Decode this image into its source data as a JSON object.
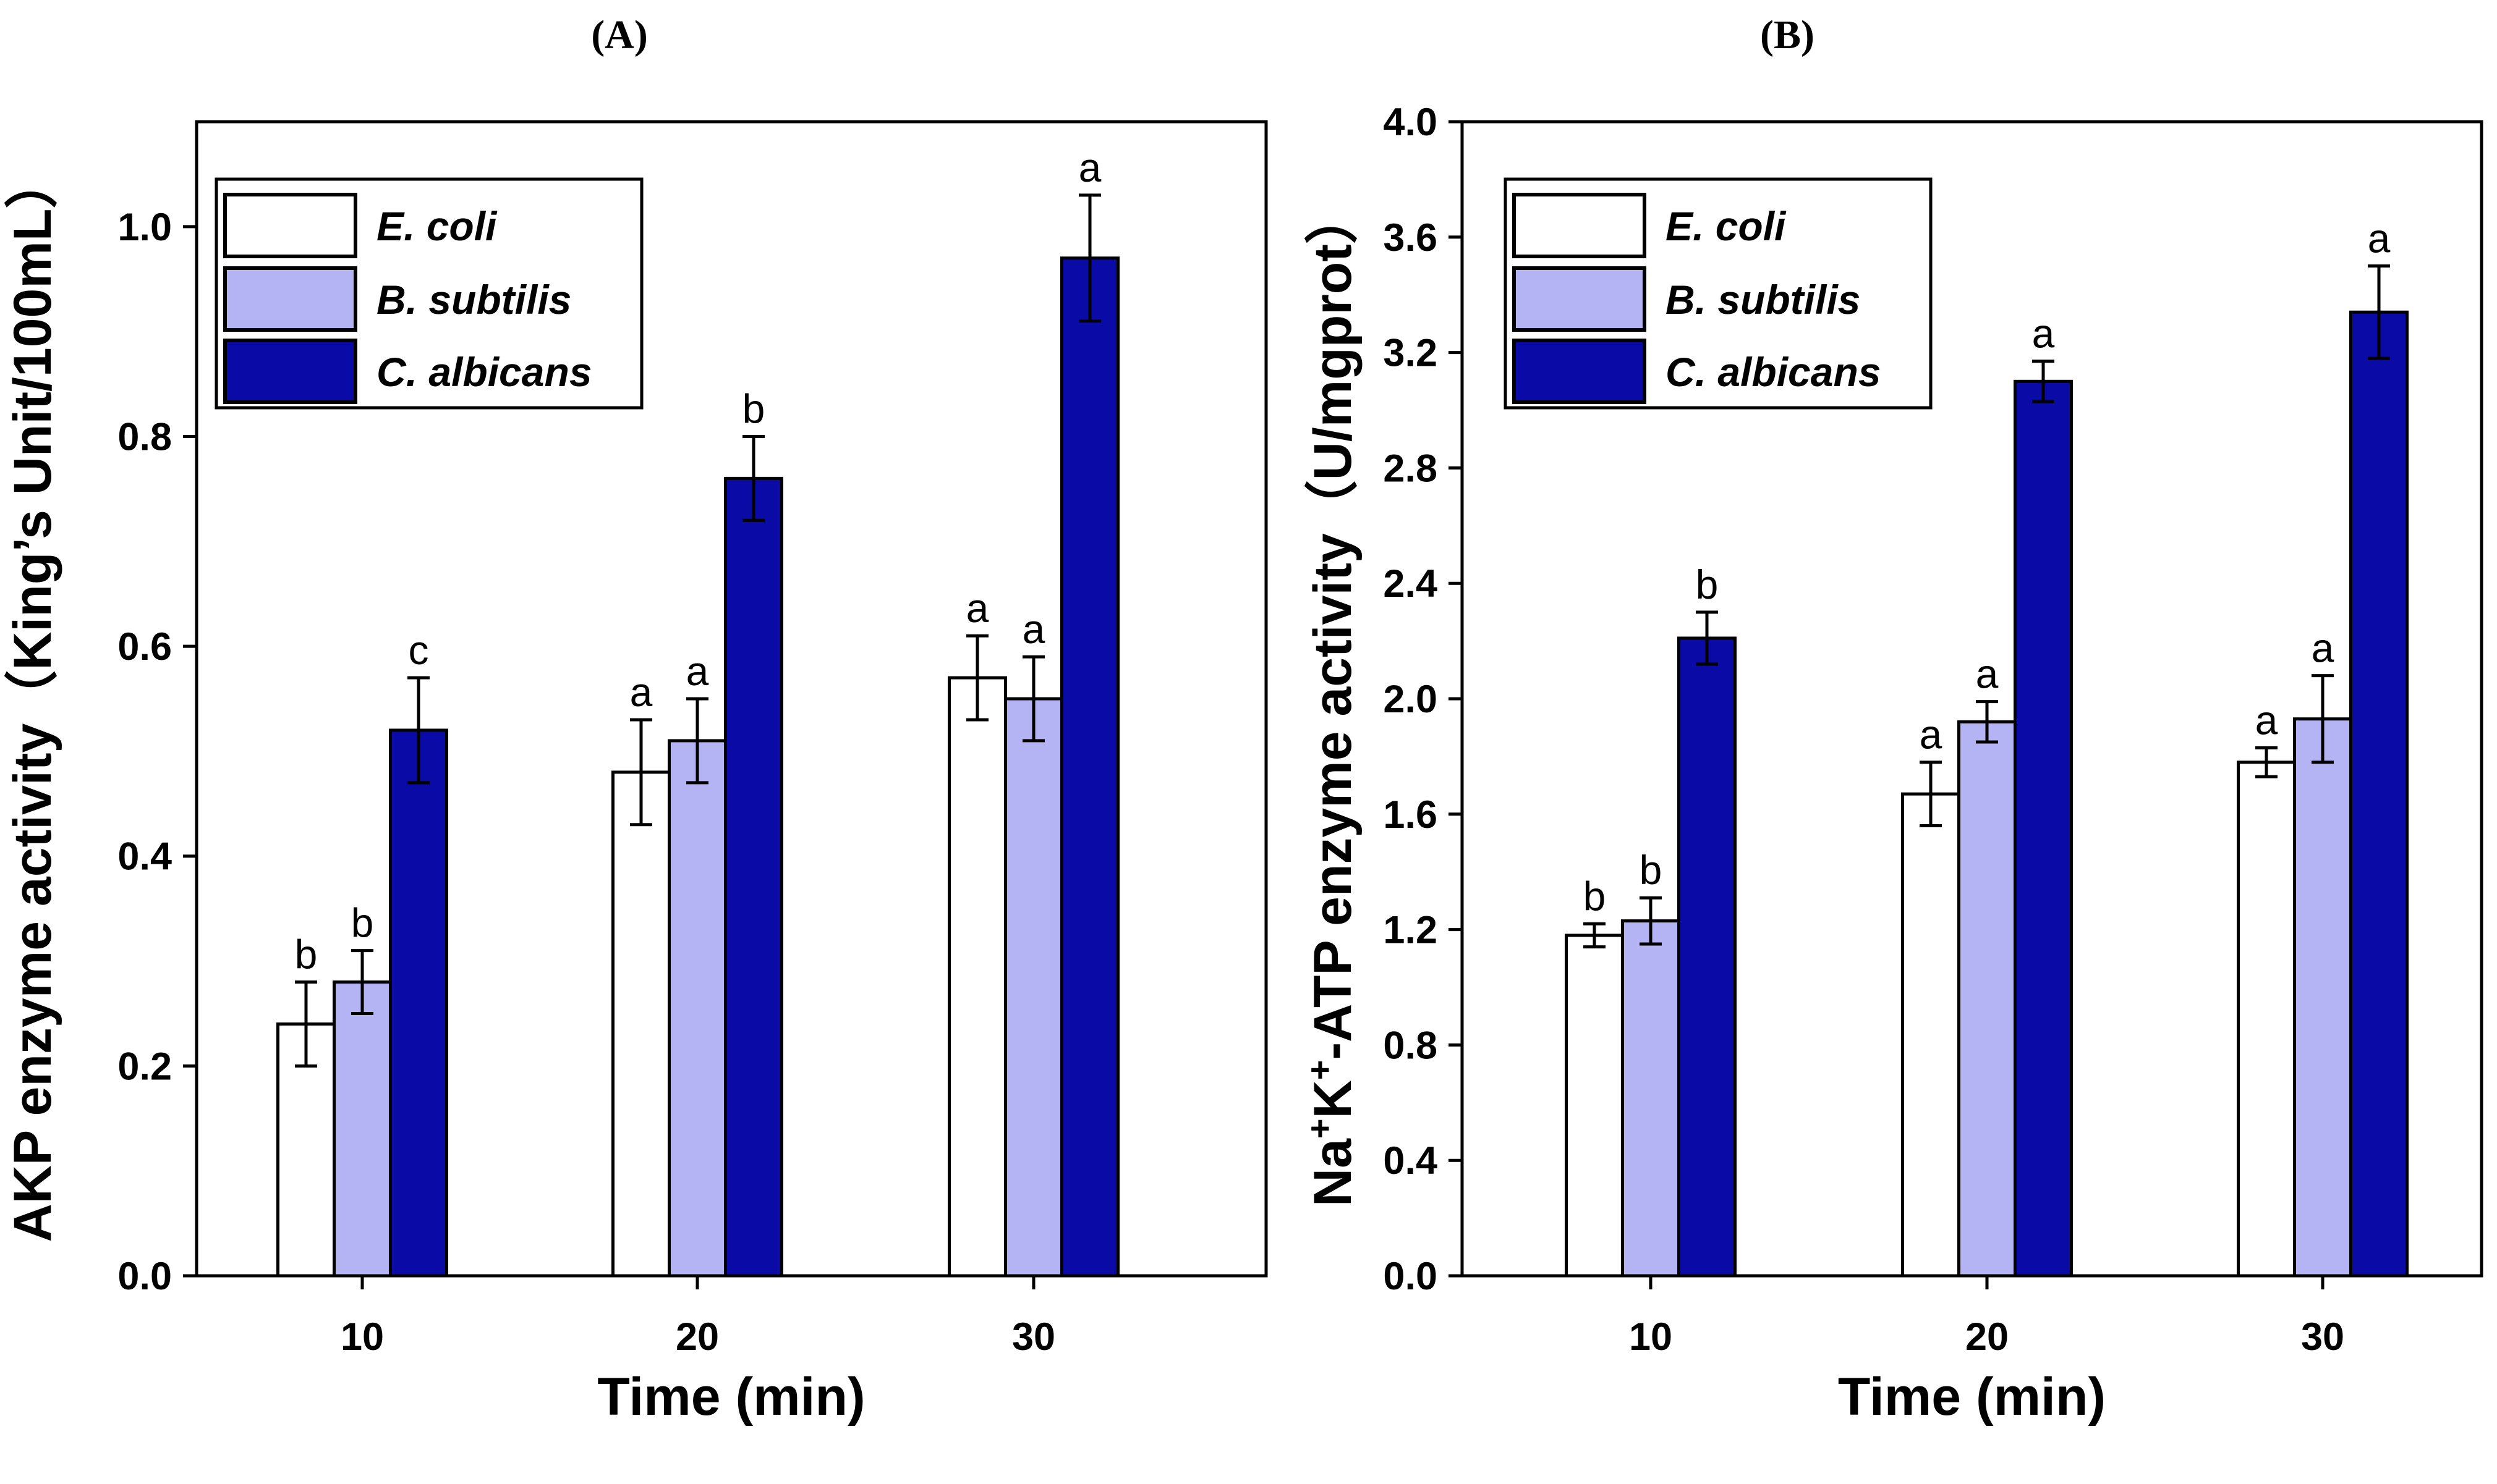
{
  "chart_data": [
    {
      "type": "bar",
      "panel_label": "(A)",
      "categories": [
        "10",
        "20",
        "30"
      ],
      "xlabel": "Time (min)",
      "ylabel": "AKP enzyme activity（King’s Unit/100mL）",
      "ylim": [
        0,
        1.1
      ],
      "yticks": [
        0.0,
        0.2,
        0.4,
        0.6,
        0.8,
        1.0
      ],
      "ytick_labels": [
        "0.0",
        "0.2",
        "0.4",
        "0.6",
        "0.8",
        "1.0"
      ],
      "legend_position": "top-left",
      "grid": false,
      "series": [
        {
          "name": "E. coli",
          "color": "#ffffff",
          "values": [
            0.24,
            0.48,
            0.57
          ],
          "errors": [
            0.04,
            0.05,
            0.04
          ],
          "letters": [
            "b",
            "a",
            "a"
          ]
        },
        {
          "name": "B. subtilis",
          "color": "#b4b4f5",
          "values": [
            0.28,
            0.51,
            0.55
          ],
          "errors": [
            0.03,
            0.04,
            0.04
          ],
          "letters": [
            "b",
            "a",
            "a"
          ]
        },
        {
          "name": "C. albicans",
          "color": "#0a0aa6",
          "values": [
            0.52,
            0.76,
            0.97
          ],
          "errors": [
            0.05,
            0.04,
            0.06
          ],
          "letters": [
            "c",
            "b",
            "a"
          ]
        }
      ]
    },
    {
      "type": "bar",
      "panel_label": "(B)",
      "categories": [
        "10",
        "20",
        "30"
      ],
      "xlabel": "Time (min)",
      "ylabel_parts": {
        "pre": "Na",
        "sup1": "+",
        "mid": "K",
        "sup2": "+",
        "post": "-ATP enzyme activity（U/mgprot）"
      },
      "ylim": [
        0,
        4.0
      ],
      "yticks": [
        0.0,
        0.4,
        0.8,
        1.2,
        1.6,
        2.0,
        2.4,
        2.8,
        3.2,
        3.6,
        4.0
      ],
      "ytick_labels": [
        "0.0",
        "0.4",
        "0.8",
        "1.2",
        "1.6",
        "2.0",
        "2.4",
        "2.8",
        "3.2",
        "3.6",
        "4.0"
      ],
      "legend_position": "top-left",
      "grid": false,
      "series": [
        {
          "name": "E. coli",
          "color": "#ffffff",
          "values": [
            1.18,
            1.67,
            1.78
          ],
          "errors": [
            0.04,
            0.11,
            0.05
          ],
          "letters": [
            "b",
            "a",
            "a"
          ]
        },
        {
          "name": "B. subtilis",
          "color": "#b4b4f5",
          "values": [
            1.23,
            1.92,
            1.93
          ],
          "errors": [
            0.08,
            0.07,
            0.15
          ],
          "letters": [
            "b",
            "a",
            "a"
          ]
        },
        {
          "name": "C. albicans",
          "color": "#0a0aa6",
          "values": [
            2.21,
            3.1,
            3.34
          ],
          "errors": [
            0.09,
            0.07,
            0.16
          ],
          "letters": [
            "b",
            "a",
            "a"
          ]
        }
      ]
    }
  ]
}
